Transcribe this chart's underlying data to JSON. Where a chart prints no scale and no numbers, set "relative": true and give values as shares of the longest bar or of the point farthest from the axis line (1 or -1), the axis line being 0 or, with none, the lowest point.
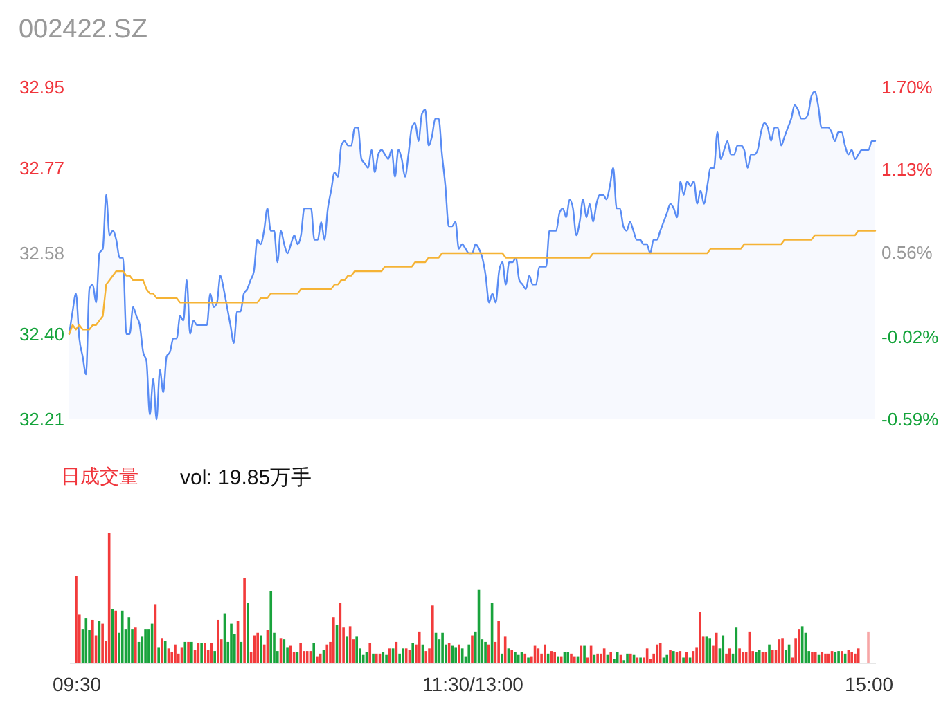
{
  "chart_data": [
    {
      "type": "line",
      "title": "002422.SZ",
      "categories": [
        null,
        null,
        null,
        null,
        null,
        null,
        null,
        null,
        null,
        null,
        null,
        null,
        null,
        null,
        null,
        null,
        null,
        null,
        null,
        null,
        null,
        null,
        null,
        null,
        null,
        null,
        null,
        null,
        null,
        null,
        null,
        null,
        null,
        null,
        null,
        null,
        null,
        null,
        null,
        null,
        null,
        null,
        null,
        null,
        null,
        null,
        null,
        null,
        null,
        null,
        null,
        null,
        null,
        null,
        null,
        null,
        null,
        null,
        null,
        null,
        null,
        null,
        null,
        null,
        null,
        null,
        null,
        null,
        null,
        null,
        null,
        null,
        null,
        null,
        null,
        null,
        null,
        null,
        null,
        null,
        null,
        null,
        null,
        null,
        null,
        null,
        null,
        null,
        null,
        null,
        null,
        null,
        null,
        null,
        null,
        null,
        null,
        null,
        null,
        null,
        null,
        null,
        null,
        null,
        null,
        null,
        null,
        null,
        null,
        null,
        null,
        null,
        null,
        null,
        null,
        null,
        null,
        null,
        null,
        null,
        null,
        null,
        null,
        null,
        null,
        null,
        null,
        null,
        null,
        null,
        null,
        null,
        null,
        null,
        null,
        null,
        null,
        null,
        null,
        null,
        null,
        null,
        null,
        null,
        null,
        null,
        null,
        null,
        null,
        null,
        null,
        null,
        null,
        null,
        null,
        null,
        null,
        null,
        null,
        null,
        null,
        null,
        null,
        null,
        null,
        null,
        null,
        null,
        null,
        null,
        null,
        null,
        null,
        null,
        null,
        null,
        null,
        null,
        null,
        null,
        null,
        null,
        null,
        null,
        null,
        null,
        null,
        null,
        null,
        null,
        null,
        null,
        null,
        null,
        null,
        null,
        null,
        null,
        null,
        null,
        null,
        null,
        null,
        null,
        null,
        null,
        null,
        null,
        null,
        null,
        null,
        null,
        null,
        null,
        null,
        null,
        null,
        null,
        null,
        null,
        null,
        null,
        null,
        null,
        null,
        null,
        null,
        null,
        null,
        null,
        null,
        null,
        null,
        null,
        null,
        null,
        null,
        null,
        null,
        null,
        null
      ],
      "ylim": [
        32.21,
        32.95
      ],
      "yticks": [
        32.21,
        {
          "value": 32.4,
          "label": "32.40"
        },
        32.58,
        32.77,
        32.95
      ],
      "y2lim": [
        -0.59,
        1.7
      ],
      "y2ticks": [
        {
          "value": -0.59,
          "label": "-0.59%"
        },
        {
          "value": -0.02,
          "label": "-0.02%"
        },
        {
          "value": 0.56,
          "label": "0.56%"
        },
        {
          "value": 1.13,
          "label": "1.13%"
        },
        {
          "value": 1.7,
          "label": "1.70%"
        }
      ],
      "tick_labels": "y",
      "series": [
        {
          "type": "area",
          "color": "#598cf4",
          "values": [
            32.4,
            32.45,
            32.49,
            32.39,
            32.35,
            32.31,
            32.5,
            32.51,
            32.47,
            32.58,
            32.59,
            32.71,
            32.62,
            32.63,
            32.61,
            32.57,
            32.57,
            32.4,
            32.4,
            32.46,
            32.44,
            32.42,
            32.36,
            32.34,
            32.22,
            32.3,
            32.21,
            32.32,
            32.27,
            32.35,
            32.36,
            32.39,
            32.39,
            32.44,
            32.43,
            32.52,
            32.4,
            32.43,
            32.42,
            32.42,
            32.42,
            32.42,
            32.49,
            32.46,
            32.47,
            32.53,
            32.5,
            32.46,
            32.42,
            32.38,
            32.45,
            32.45,
            32.49,
            32.5,
            32.52,
            32.54,
            32.61,
            32.6,
            32.63,
            32.68,
            32.63,
            32.63,
            32.56,
            32.63,
            32.6,
            32.58,
            32.6,
            32.62,
            32.6,
            32.62,
            32.68,
            32.68,
            32.68,
            32.61,
            32.61,
            32.65,
            32.61,
            32.68,
            32.72,
            32.76,
            32.75,
            32.82,
            32.83,
            32.82,
            32.82,
            32.86,
            32.86,
            32.79,
            32.78,
            32.77,
            32.81,
            32.76,
            32.8,
            32.81,
            32.8,
            32.79,
            32.81,
            32.75,
            32.81,
            32.79,
            32.75,
            32.8,
            32.86,
            32.87,
            32.83,
            32.89,
            32.9,
            32.82,
            32.84,
            32.88,
            32.88,
            32.8,
            32.73,
            32.64,
            32.64,
            32.65,
            32.59,
            32.6,
            32.59,
            32.58,
            32.58,
            32.6,
            32.59,
            32.57,
            32.53,
            32.47,
            32.49,
            32.47,
            32.54,
            32.56,
            32.51,
            32.56,
            32.56,
            32.57,
            32.52,
            32.51,
            32.5,
            32.53,
            32.51,
            32.51,
            32.55,
            32.55,
            32.55,
            32.63,
            32.63,
            32.63,
            32.67,
            32.68,
            32.66,
            32.7,
            32.68,
            32.62,
            32.65,
            32.7,
            32.66,
            32.69,
            32.65,
            32.69,
            32.71,
            32.71,
            32.7,
            32.73,
            32.77,
            32.68,
            32.68,
            32.64,
            32.63,
            32.65,
            32.63,
            32.61,
            32.61,
            32.6,
            32.6,
            32.58,
            32.61,
            32.61,
            32.63,
            32.65,
            32.67,
            32.69,
            32.68,
            32.66,
            32.74,
            32.71,
            32.74,
            32.73,
            32.74,
            32.69,
            32.72,
            32.69,
            32.73,
            32.77,
            32.77,
            32.85,
            32.79,
            32.81,
            32.83,
            32.8,
            32.8,
            32.82,
            32.82,
            32.81,
            32.77,
            32.8,
            32.8,
            32.81,
            32.85,
            32.87,
            32.86,
            32.83,
            32.86,
            32.86,
            32.82,
            32.84,
            32.86,
            32.88,
            32.91,
            32.9,
            32.88,
            32.88,
            32.89,
            32.93,
            32.94,
            32.91,
            32.86,
            32.86,
            32.86,
            32.85,
            32.83,
            32.85,
            32.85,
            32.82,
            32.8,
            32.81,
            32.79,
            32.8,
            32.81,
            32.81,
            32.81,
            32.83,
            32.83
          ]
        },
        {
          "type": "line",
          "color": "#f5b335",
          "values": [
            32.4,
            32.42,
            32.41,
            32.42,
            32.41,
            32.41,
            32.41,
            32.42,
            32.42,
            32.43,
            32.44,
            32.51,
            32.52,
            32.53,
            32.54,
            32.54,
            32.54,
            32.53,
            32.53,
            32.52,
            32.52,
            32.52,
            32.52,
            32.5,
            32.49,
            32.49,
            32.48,
            32.48,
            32.48,
            32.48,
            32.48,
            32.48,
            32.48,
            32.47,
            32.47,
            32.47,
            32.47,
            32.47,
            32.47,
            32.47,
            32.47,
            32.47,
            32.47,
            32.47,
            32.47,
            32.47,
            32.47,
            32.47,
            32.47,
            32.47,
            32.47,
            32.47,
            32.47,
            32.47,
            32.47,
            32.47,
            32.47,
            32.48,
            32.48,
            32.48,
            32.49,
            32.49,
            32.49,
            32.49,
            32.49,
            32.49,
            32.49,
            32.49,
            32.49,
            32.5,
            32.5,
            32.5,
            32.5,
            32.5,
            32.5,
            32.5,
            32.5,
            32.5,
            32.5,
            32.51,
            32.51,
            32.52,
            32.52,
            32.53,
            32.53,
            32.54,
            32.54,
            32.54,
            32.54,
            32.54,
            32.54,
            32.54,
            32.54,
            32.54,
            32.55,
            32.55,
            32.55,
            32.55,
            32.55,
            32.55,
            32.55,
            32.55,
            32.55,
            32.56,
            32.56,
            32.56,
            32.56,
            32.57,
            32.57,
            32.57,
            32.57,
            32.58,
            32.58,
            32.58,
            32.58,
            32.58,
            32.58,
            32.58,
            32.58,
            32.58,
            32.58,
            32.58,
            32.58,
            32.58,
            32.58,
            32.58,
            32.58,
            32.58,
            32.58,
            32.58,
            32.57,
            32.57,
            32.57,
            32.57,
            32.57,
            32.57,
            32.57,
            32.57,
            32.57,
            32.57,
            32.57,
            32.57,
            32.57,
            32.57,
            32.57,
            32.57,
            32.57,
            32.57,
            32.57,
            32.57,
            32.57,
            32.57,
            32.57,
            32.57,
            32.57,
            32.57,
            32.58,
            32.58,
            32.58,
            32.58,
            32.58,
            32.58,
            32.58,
            32.58,
            32.58,
            32.58,
            32.58,
            32.58,
            32.58,
            32.58,
            32.58,
            32.58,
            32.58,
            32.58,
            32.58,
            32.58,
            32.58,
            32.58,
            32.58,
            32.58,
            32.58,
            32.58,
            32.58,
            32.58,
            32.58,
            32.58,
            32.58,
            32.58,
            32.58,
            32.58,
            32.58,
            32.59,
            32.59,
            32.59,
            32.59,
            32.59,
            32.59,
            32.59,
            32.59,
            32.59,
            32.59,
            32.6,
            32.6,
            32.6,
            32.6,
            32.6,
            32.6,
            32.6,
            32.6,
            32.6,
            32.6,
            32.6,
            32.6,
            32.61,
            32.61,
            32.61,
            32.61,
            32.61,
            32.61,
            32.61,
            32.61,
            32.61,
            32.62,
            32.62,
            32.62,
            32.62,
            32.62,
            32.62,
            32.62,
            32.62,
            32.62,
            32.62,
            32.62,
            32.62,
            32.62,
            32.63,
            32.63,
            32.63,
            32.63,
            32.63,
            32.63
          ]
        }
      ]
    },
    {
      "type": "bar",
      "relative": true,
      "annotations": [
        "日成交量",
        "vol: 19.85万手"
      ],
      "tick_labels": "x",
      "categories": [
        "09:30",
        null,
        null,
        null,
        null,
        null,
        null,
        null,
        null,
        null,
        null,
        null,
        null,
        null,
        null,
        null,
        null,
        null,
        null,
        null,
        null,
        null,
        null,
        null,
        null,
        null,
        null,
        null,
        null,
        null,
        null,
        null,
        null,
        null,
        null,
        null,
        null,
        null,
        null,
        null,
        null,
        null,
        null,
        null,
        null,
        null,
        null,
        null,
        null,
        null,
        null,
        null,
        null,
        null,
        null,
        null,
        null,
        null,
        null,
        null,
        null,
        null,
        null,
        null,
        null,
        null,
        null,
        null,
        null,
        null,
        null,
        null,
        null,
        null,
        null,
        null,
        null,
        null,
        null,
        null,
        null,
        null,
        null,
        null,
        null,
        null,
        null,
        null,
        null,
        null,
        null,
        null,
        null,
        null,
        null,
        null,
        null,
        null,
        null,
        null,
        null,
        null,
        null,
        null,
        null,
        null,
        null,
        null,
        null,
        null,
        null,
        null,
        null,
        null,
        null,
        null,
        null,
        null,
        null,
        null,
        "11:30/13:00",
        null,
        null,
        null,
        null,
        null,
        null,
        null,
        null,
        null,
        null,
        null,
        null,
        null,
        null,
        null,
        null,
        null,
        null,
        null,
        null,
        null,
        null,
        null,
        null,
        null,
        null,
        null,
        null,
        null,
        null,
        null,
        null,
        null,
        null,
        null,
        null,
        null,
        null,
        null,
        null,
        null,
        null,
        null,
        null,
        null,
        null,
        null,
        null,
        null,
        null,
        null,
        null,
        null,
        null,
        null,
        null,
        null,
        null,
        null,
        null,
        null,
        null,
        null,
        null,
        null,
        null,
        null,
        null,
        null,
        null,
        null,
        null,
        null,
        null,
        null,
        null,
        null,
        null,
        null,
        null,
        null,
        null,
        null,
        null,
        null,
        null,
        null,
        null,
        null,
        null,
        null,
        null,
        null,
        null,
        null,
        null,
        null,
        null,
        null,
        null,
        null,
        null,
        null,
        null,
        null,
        null,
        null,
        null,
        null,
        null,
        null,
        null,
        null,
        null,
        null,
        null,
        null,
        null,
        null,
        "15:00"
      ],
      "values": [
        0.67,
        0.37,
        0.26,
        0.34,
        0.25,
        0.33,
        0.21,
        0.32,
        0.3,
        0.17,
        1,
        0.41,
        0.4,
        0.23,
        0.4,
        0.26,
        0.35,
        0.26,
        0.27,
        0.16,
        0.2,
        0.26,
        0.26,
        0.3,
        0.45,
        0.12,
        0.19,
        0.17,
        0.11,
        0.08,
        0.14,
        0.07,
        0.12,
        0.16,
        0.16,
        0.16,
        0.1,
        0.15,
        0.15,
        0.15,
        0.1,
        0.15,
        0.09,
        0.33,
        0.18,
        0.38,
        0.16,
        0.3,
        0.22,
        0.32,
        0.16,
        0.65,
        0.46,
        0.08,
        0.21,
        0.23,
        0.21,
        0.14,
        0.25,
        0.55,
        0.23,
        0.09,
        0.19,
        0.18,
        0.12,
        0.13,
        0.08,
        0.08,
        0.15,
        0.09,
        0.09,
        0.09,
        0.15,
        0.05,
        0.07,
        0.1,
        0.14,
        0.16,
        0.35,
        0.29,
        0.46,
        0.27,
        0.2,
        0.28,
        0.18,
        0.2,
        0.11,
        0.06,
        0.08,
        0.15,
        0.07,
        0.07,
        0.07,
        0.08,
        0.06,
        0.11,
        0.11,
        0.16,
        0.07,
        0.11,
        0.11,
        0.1,
        0.15,
        0.14,
        0.24,
        0.14,
        0.09,
        0.11,
        0.44,
        0.23,
        0.18,
        0.23,
        0.14,
        0.15,
        0.13,
        0.12,
        0.14,
        0.11,
        0.05,
        0.14,
        0.21,
        0.24,
        0.56,
        0.18,
        0.16,
        0.14,
        0.46,
        0.16,
        0.32,
        0.07,
        0.2,
        0.11,
        0.1,
        0.08,
        0.06,
        0.08,
        0.07,
        0.04,
        0.05,
        0.13,
        0.11,
        0.07,
        0.14,
        0.07,
        0.09,
        0.08,
        0.05,
        0.05,
        0.08,
        0.08,
        0.07,
        0.05,
        0.05,
        0.13,
        0.13,
        0.04,
        0.13,
        0.06,
        0.07,
        0.07,
        0.11,
        0.06,
        0.08,
        0.03,
        0.08,
        0.06,
        0.02,
        0.07,
        0.07,
        0.06,
        0.04,
        0.04,
        0.04,
        0.11,
        0.03,
        0.07,
        0.14,
        0.15,
        0.04,
        0.06,
        0.1,
        0.09,
        0.08,
        0.09,
        0.04,
        0.08,
        0.04,
        0.09,
        0.12,
        0.39,
        0.2,
        0.2,
        0.19,
        0.13,
        0.23,
        0.11,
        0.21,
        0.07,
        0.11,
        0.07,
        0.27,
        0.11,
        0.08,
        0.08,
        0.24,
        0.09,
        0.08,
        0.1,
        0.08,
        0.08,
        0.14,
        0.1,
        0.1,
        0.18,
        0.19,
        0.1,
        0.14,
        0.04,
        0.19,
        0.26,
        0.28,
        0.23,
        0.09,
        0.08,
        0.08,
        0.06,
        0.08,
        0.07,
        0.07,
        0.09,
        0.08,
        0.09,
        0.09,
        0.07,
        0.1,
        0.08,
        0.07,
        0.11,
        null,
        null,
        0.24
      ],
      "colors": [
        "#f23b3b",
        "#f23b3b",
        "#19a33c",
        "#19a33c",
        "#19a33c",
        "#f23b3b",
        "#f23b3b",
        "#19a33c",
        "#f23b3b",
        "#f23b3b",
        "#f23b3b",
        "#19a33c",
        "#f23b3b",
        "#19a33c",
        "#19a33c",
        "#19a33c",
        "#19a33c",
        "#19a33c",
        "#f23b3b",
        "#19a33c",
        "#19a33c",
        "#19a33c",
        "#19a33c",
        "#19a33c",
        "#f23b3b",
        "#19a33c",
        "#f23b3b",
        "#19a33c",
        "#f23b3b",
        "#f23b3b",
        "#f23b3b",
        "#f23b3b",
        "#f23b3b",
        "#19a33c",
        "#f23b3b",
        "#19a33c",
        "#f23b3b",
        "#f23b3b",
        "#19a33c",
        "#f23b3b",
        "#f23b3b",
        "#f23b3b",
        "#19a33c",
        "#f23b3b",
        "#f23b3b",
        "#19a33c",
        "#19a33c",
        "#19a33c",
        "#19a33c",
        "#f23b3b",
        "#19a33c",
        "#f23b3b",
        "#19a33c",
        "#f23b3b",
        "#f23b3b",
        "#f23b3b",
        "#19a33c",
        "#f23b3b",
        "#f23b3b",
        "#19a33c",
        "#19a33c",
        "#19a33c",
        "#f23b3b",
        "#19a33c",
        "#19a33c",
        "#f23b3b",
        "#f23b3b",
        "#19a33c",
        "#f23b3b",
        "#f23b3b",
        "#f23b3b",
        "#f23b3b",
        "#19a33c",
        "#f23b3b",
        "#f23b3b",
        "#19a33c",
        "#f23b3b",
        "#f23b3b",
        "#f23b3b",
        "#19a33c",
        "#f23b3b",
        "#f23b3b",
        "#19a33c",
        "#f23b3b",
        "#f23b3b",
        "#19a33c",
        "#19a33c",
        "#19a33c",
        "#19a33c",
        "#f23b3b",
        "#19a33c",
        "#f23b3b",
        "#f23b3b",
        "#19a33c",
        "#19a33c",
        "#f23b3b",
        "#19a33c",
        "#f23b3b",
        "#19a33c",
        "#19a33c",
        "#f23b3b",
        "#f23b3b",
        "#19a33c",
        "#f23b3b",
        "#f23b3b",
        "#19a33c",
        "#f23b3b",
        "#f23b3b",
        "#f23b3b",
        "#19a33c",
        "#19a33c",
        "#19a33c",
        "#19a33c",
        "#f23b3b",
        "#19a33c",
        "#19a33c",
        "#f23b3b",
        "#19a33c",
        "#19a33c",
        "#19a33c",
        "#f23b3b",
        "#19a33c",
        "#19a33c",
        "#19a33c",
        "#19a33c",
        "#f23b3b",
        "#19a33c",
        "#f23b3b",
        "#f23b3b",
        "#19a33c",
        "#f23b3b",
        "#19a33c",
        "#f23b3b",
        "#19a33c",
        "#19a33c",
        "#19a33c",
        "#f23b3b",
        "#19a33c",
        "#f23b3b",
        "#f23b3b",
        "#f23b3b",
        "#f23b3b",
        "#f23b3b",
        "#19a33c",
        "#f23b3b",
        "#f23b3b",
        "#19a33c",
        "#f23b3b",
        "#19a33c",
        "#19a33c",
        "#f23b3b",
        "#f23b3b",
        "#19a33c",
        "#f23b3b",
        "#19a33c",
        "#f23b3b",
        "#f23b3b",
        "#19a33c",
        "#f23b3b",
        "#f23b3b",
        "#f23b3b",
        "#19a33c",
        "#f23b3b",
        "#19a33c",
        "#19a33c",
        "#f23b3b",
        "#19a33c",
        "#19a33c",
        "#f23b3b",
        "#19a33c",
        "#f23b3b",
        "#19a33c",
        "#f23b3b",
        "#f23b3b",
        "#f23b3b",
        "#f23b3b",
        "#f23b3b",
        "#f23b3b",
        "#19a33c",
        "#19a33c",
        "#f23b3b",
        "#19a33c",
        "#f23b3b",
        "#f23b3b",
        "#19a33c",
        "#f23b3b",
        "#19a33c",
        "#f23b3b",
        "#f23b3b",
        "#f23b3b",
        "#f23b3b",
        "#19a33c",
        "#19a33c",
        "#f23b3b",
        "#f23b3b",
        "#19a33c",
        "#19a33c",
        "#f23b3b",
        "#f23b3b",
        "#19a33c",
        "#19a33c",
        "#f23b3b",
        "#f23b3b",
        "#f23b3b",
        "#f23b3b",
        "#f23b3b",
        "#19a33c",
        "#19a33c",
        "#f23b3b",
        "#f23b3b",
        "#19a33c",
        "#f23b3b",
        "#f23b3b",
        "#f23b3b",
        "#f23b3b",
        "#19a33c",
        "#19a33c",
        "#f23b3b",
        "#f23b3b",
        "#f23b3b",
        "#19a33c",
        "#19a33c",
        "#19a33c",
        "#f23b3b",
        "#f23b3b",
        "#19a33c",
        "#f23b3b",
        "#f23b3b",
        "#f23b3b",
        "#f23b3b",
        "#19a33c",
        "#19a33c",
        "#f23b3b",
        "#19a33c",
        "#f23b3b",
        "#f23b3b",
        "#f23b3b",
        "#f23b3b",
        null,
        null,
        "#f7a6a6"
      ]
    }
  ]
}
